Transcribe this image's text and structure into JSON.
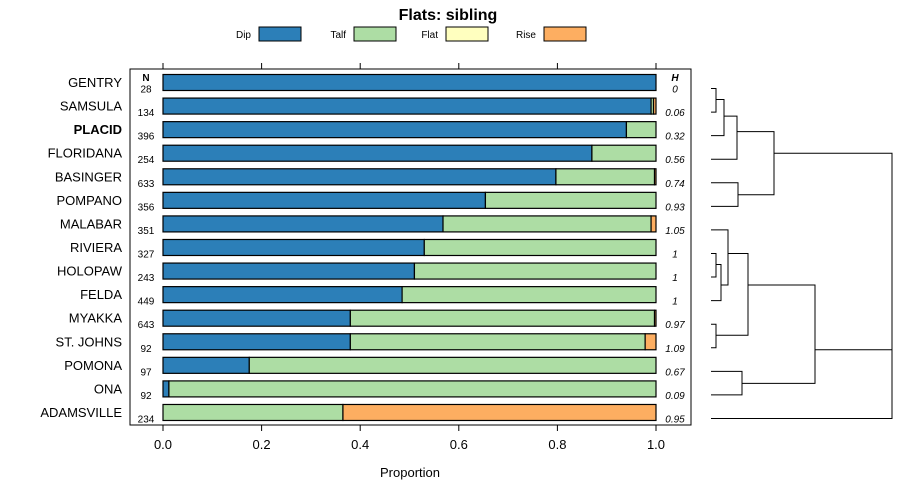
{
  "chart_data": {
    "type": "bar",
    "stacked": true,
    "orientation": "horizontal",
    "title": "Flats: sibling",
    "xlabel": "Proportion",
    "ylabel": "",
    "xlim": [
      0,
      1
    ],
    "x_ticks": [
      "0.0",
      "0.2",
      "0.4",
      "0.6",
      "0.8",
      "1.0"
    ],
    "x_tick_values": [
      0,
      0.2,
      0.4,
      0.6,
      0.8,
      1.0
    ],
    "n_header": "N",
    "h_header": "H",
    "highlight_category": "PLACID",
    "legend": [
      {
        "name": "Dip",
        "color": "#2c7fb8"
      },
      {
        "name": "Talf",
        "color": "#addda4"
      },
      {
        "name": "Flat",
        "color": "#ffffbf"
      },
      {
        "name": "Rise",
        "color": "#fdae61"
      }
    ],
    "categories": [
      "GENTRY",
      "SAMSULA",
      "PLACID",
      "FLORIDANA",
      "BASINGER",
      "POMPANO",
      "MALABAR",
      "RIVIERA",
      "HOLOPAW",
      "FELDA",
      "MYAKKA",
      "ST. JOHNS",
      "POMONA",
      "ONA",
      "ADAMSVILLE"
    ],
    "n": [
      "28",
      "134",
      "396",
      "254",
      "633",
      "356",
      "351",
      "327",
      "243",
      "449",
      "643",
      "92",
      "97",
      "92",
      "234"
    ],
    "h": [
      "0",
      "0.06",
      "0.32",
      "0.56",
      "0.74",
      "0.93",
      "1.05",
      "1",
      "1",
      "1",
      "0.97",
      "1.09",
      "0.67",
      "0.09",
      "0.95"
    ],
    "series": [
      {
        "name": "Dip",
        "values": [
          1.0,
          0.99,
          0.94,
          0.87,
          0.797,
          0.654,
          0.568,
          0.53,
          0.51,
          0.485,
          0.38,
          0.38,
          0.175,
          0.012,
          0.0
        ]
      },
      {
        "name": "Talf",
        "values": [
          0.0,
          0.005,
          0.06,
          0.13,
          0.2,
          0.346,
          0.422,
          0.47,
          0.49,
          0.515,
          0.617,
          0.598,
          0.825,
          0.988,
          0.365
        ]
      },
      {
        "name": "Flat",
        "values": [
          0.0,
          0.0,
          0.0,
          0.0,
          0.0,
          0.0,
          0.0,
          0.0,
          0.0,
          0.0,
          0.0,
          0.0,
          0.0,
          0.0,
          0.0
        ]
      },
      {
        "name": "Rise",
        "values": [
          0.0,
          0.005,
          0.0,
          0.0,
          0.003,
          0.0,
          0.01,
          0.0,
          0.0,
          0.0,
          0.003,
          0.022,
          0.0,
          0.0,
          0.635
        ]
      }
    ],
    "dendrogram": [
      [
        "GENTRY",
        "SAMSULA"
      ],
      [
        "GENTRY+SAMSULA",
        "PLACID"
      ],
      [
        "GENTRY+SAMSULA+PLACID",
        "FLORIDANA"
      ],
      [
        "BASINGER",
        "POMPANO"
      ],
      [
        "RIVIERA",
        "HOLOPAW"
      ],
      [
        "RIVIERA+HOLOPAW",
        "FELDA"
      ],
      [
        "MALABAR",
        "RIVIERA+HOLOPAW+FELDA"
      ],
      [
        "MYAKKA",
        "ST. JOHNS"
      ],
      [
        "POMONA",
        "ONA"
      ]
    ]
  }
}
